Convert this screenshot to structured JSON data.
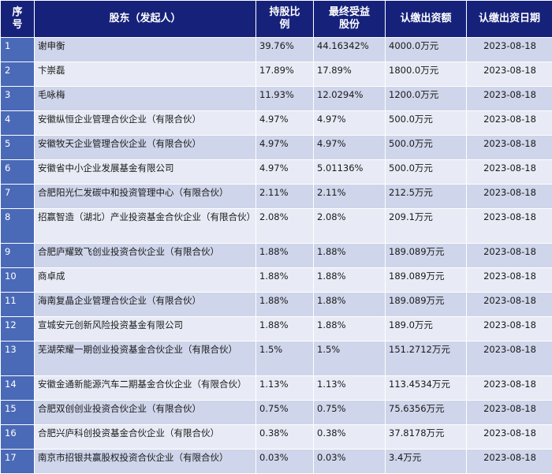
{
  "headers": {
    "idx": "序\n号",
    "name": "股东（发起人）",
    "share": "持股比\n例",
    "beneficial": "最终受益\n股份",
    "capital": "认缴出资额",
    "date": "认缴出资日期"
  },
  "rows": [
    {
      "idx": "1",
      "name": "谢申衡",
      "share": "39.76%",
      "beneficial": "44.16342%",
      "capital": "4000.0万元",
      "date": "2023-08-18"
    },
    {
      "idx": "2",
      "name": "卞崇磊",
      "share": "17.89%",
      "beneficial": "17.89%",
      "capital": "1800.0万元",
      "date": "2023-08-18"
    },
    {
      "idx": "3",
      "name": "毛咏梅",
      "share": "11.93%",
      "beneficial": "12.0294%",
      "capital": "1200.0万元",
      "date": "2023-08-18"
    },
    {
      "idx": "4",
      "name": "安徽纵恒企业管理合伙企业（有限合伙）",
      "share": "4.97%",
      "beneficial": "4.97%",
      "capital": "500.0万元",
      "date": "2023-08-18"
    },
    {
      "idx": "5",
      "name": "安徽牧天企业管理合伙企业（有限合伙）",
      "share": "4.97%",
      "beneficial": "4.97%",
      "capital": "500.0万元",
      "date": "2023-08-18"
    },
    {
      "idx": "6",
      "name": "安徽省中小企业发展基金有限公司",
      "share": "4.97%",
      "beneficial": "5.01136%",
      "capital": "500.0万元",
      "date": "2023-08-18"
    },
    {
      "idx": "7",
      "name": "合肥阳光仁发碳中和投资管理中心（有限合伙）",
      "share": "2.11%",
      "beneficial": "2.11%",
      "capital": "212.5万元",
      "date": "2023-08-18"
    },
    {
      "idx": "8",
      "name": "招赢智造（湖北）产业投资基金合伙企业（有限合伙）",
      "share": "2.08%",
      "beneficial": "2.08%",
      "capital": "209.1万元",
      "date": "2023-08-18"
    },
    {
      "idx": "9",
      "name": "合肥庐耀致飞创业投资合伙企业（有限合伙）",
      "share": "1.88%",
      "beneficial": "1.88%",
      "capital": "189.089万元",
      "date": "2023-08-18"
    },
    {
      "idx": "10",
      "name": "商卓成",
      "share": "1.88%",
      "beneficial": "1.88%",
      "capital": "189.089万元",
      "date": "2023-08-18"
    },
    {
      "idx": "11",
      "name": "海南复晶企业管理合伙企业（有限合伙）",
      "share": "1.88%",
      "beneficial": "1.88%",
      "capital": "189.089万元",
      "date": "2023-08-18"
    },
    {
      "idx": "12",
      "name": "宣城安元创新风险投资基金有限公司",
      "share": "1.88%",
      "beneficial": "1.88%",
      "capital": "189.0万元",
      "date": "2023-08-18"
    },
    {
      "idx": "13",
      "name": "芜湖荣耀一期创业投资基金合伙企业（有限合伙）",
      "share": "1.5%",
      "beneficial": "1.5%",
      "capital": "151.2712万元",
      "date": "2023-08-18"
    },
    {
      "idx": "14",
      "name": "安徽金通新能源汽车二期基金合伙企业（有限合伙）",
      "share": "1.13%",
      "beneficial": "1.13%",
      "capital": "113.4534万元",
      "date": "2023-08-18"
    },
    {
      "idx": "15",
      "name": "合肥双创创业投资合伙企业（有限合伙）",
      "share": "0.75%",
      "beneficial": "0.75%",
      "capital": "75.6356万元",
      "date": "2023-08-18"
    },
    {
      "idx": "16",
      "name": "合肥兴庐科创投资基金合伙企业（有限合伙）",
      "share": "0.38%",
      "beneficial": "0.38%",
      "capital": "37.8178万元",
      "date": "2023-08-18"
    },
    {
      "idx": "17",
      "name": "南京市招银共赢股权投资合伙企业（有限合伙）",
      "share": "0.03%",
      "beneficial": "0.03%",
      "capital": "3.4万元",
      "date": "2023-08-18"
    }
  ]
}
